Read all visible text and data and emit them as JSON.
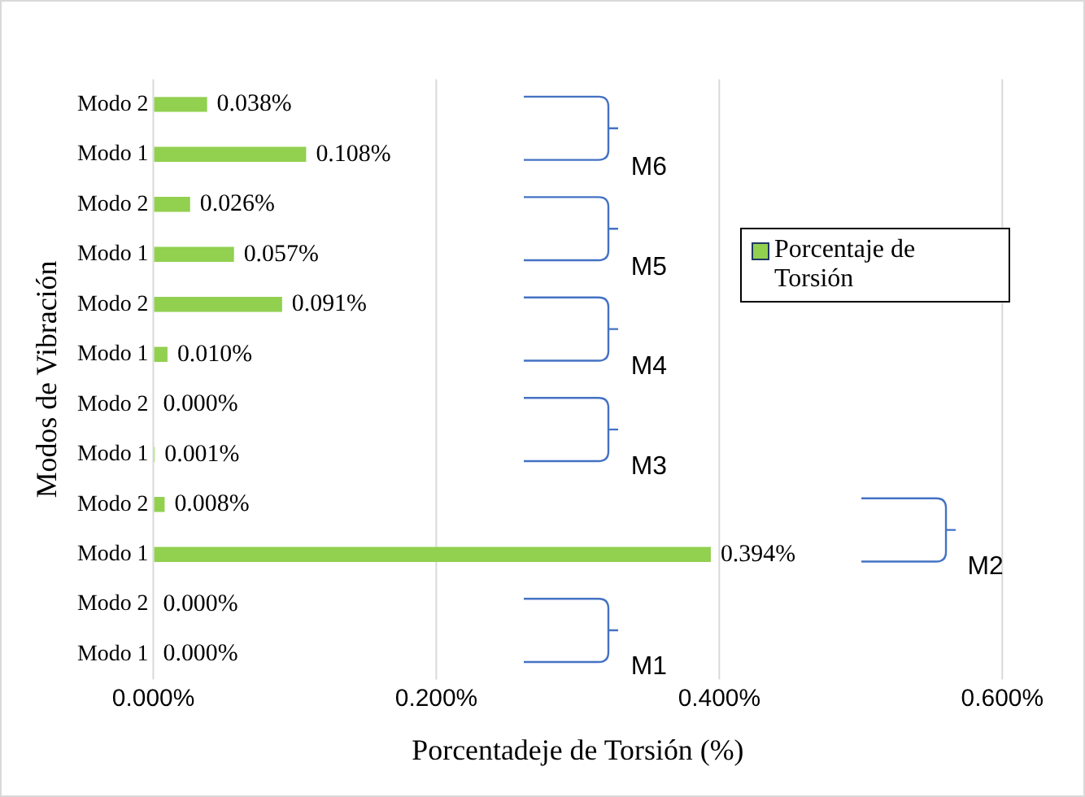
{
  "chart_data": {
    "type": "bar",
    "orientation": "horizontal",
    "xlabel": "Porcentadeje de Torsión (%)",
    "ylabel": "Modos de Vibración",
    "categories": [
      "Modo 2",
      "Modo 1",
      "Modo 2",
      "Modo 1",
      "Modo 2",
      "Modo 1",
      "Modo 2",
      "Modo 1",
      "Modo 2",
      "Modo 1",
      "Modo 2",
      "Modo 1"
    ],
    "series": [
      {
        "name": "Porcentaje de Torsión",
        "color": "#92d050",
        "values": [
          0.038,
          0.108,
          0.026,
          0.057,
          0.091,
          0.01,
          0.0,
          0.001,
          0.008,
          0.394,
          0.0,
          0.0
        ],
        "value_labels": [
          "0.038%",
          "0.108%",
          "0.026%",
          "0.057%",
          "0.091%",
          "0.010%",
          "0.000%",
          "0.001%",
          "0.008%",
          "0.394%",
          "0.000%",
          "0.000%"
        ]
      }
    ],
    "xlim": [
      0,
      0.6
    ],
    "xticks": [
      {
        "value": 0,
        "label": "0.000%"
      },
      {
        "value": 0.2,
        "label": "0.200%"
      },
      {
        "value": 0.4,
        "label": "0.400%"
      },
      {
        "value": 0.6,
        "label": "0.600%"
      }
    ],
    "grid": "x",
    "legend": "right",
    "annotations": [
      "M1",
      "M2",
      "M3",
      "M4",
      "M5",
      "M6"
    ]
  }
}
